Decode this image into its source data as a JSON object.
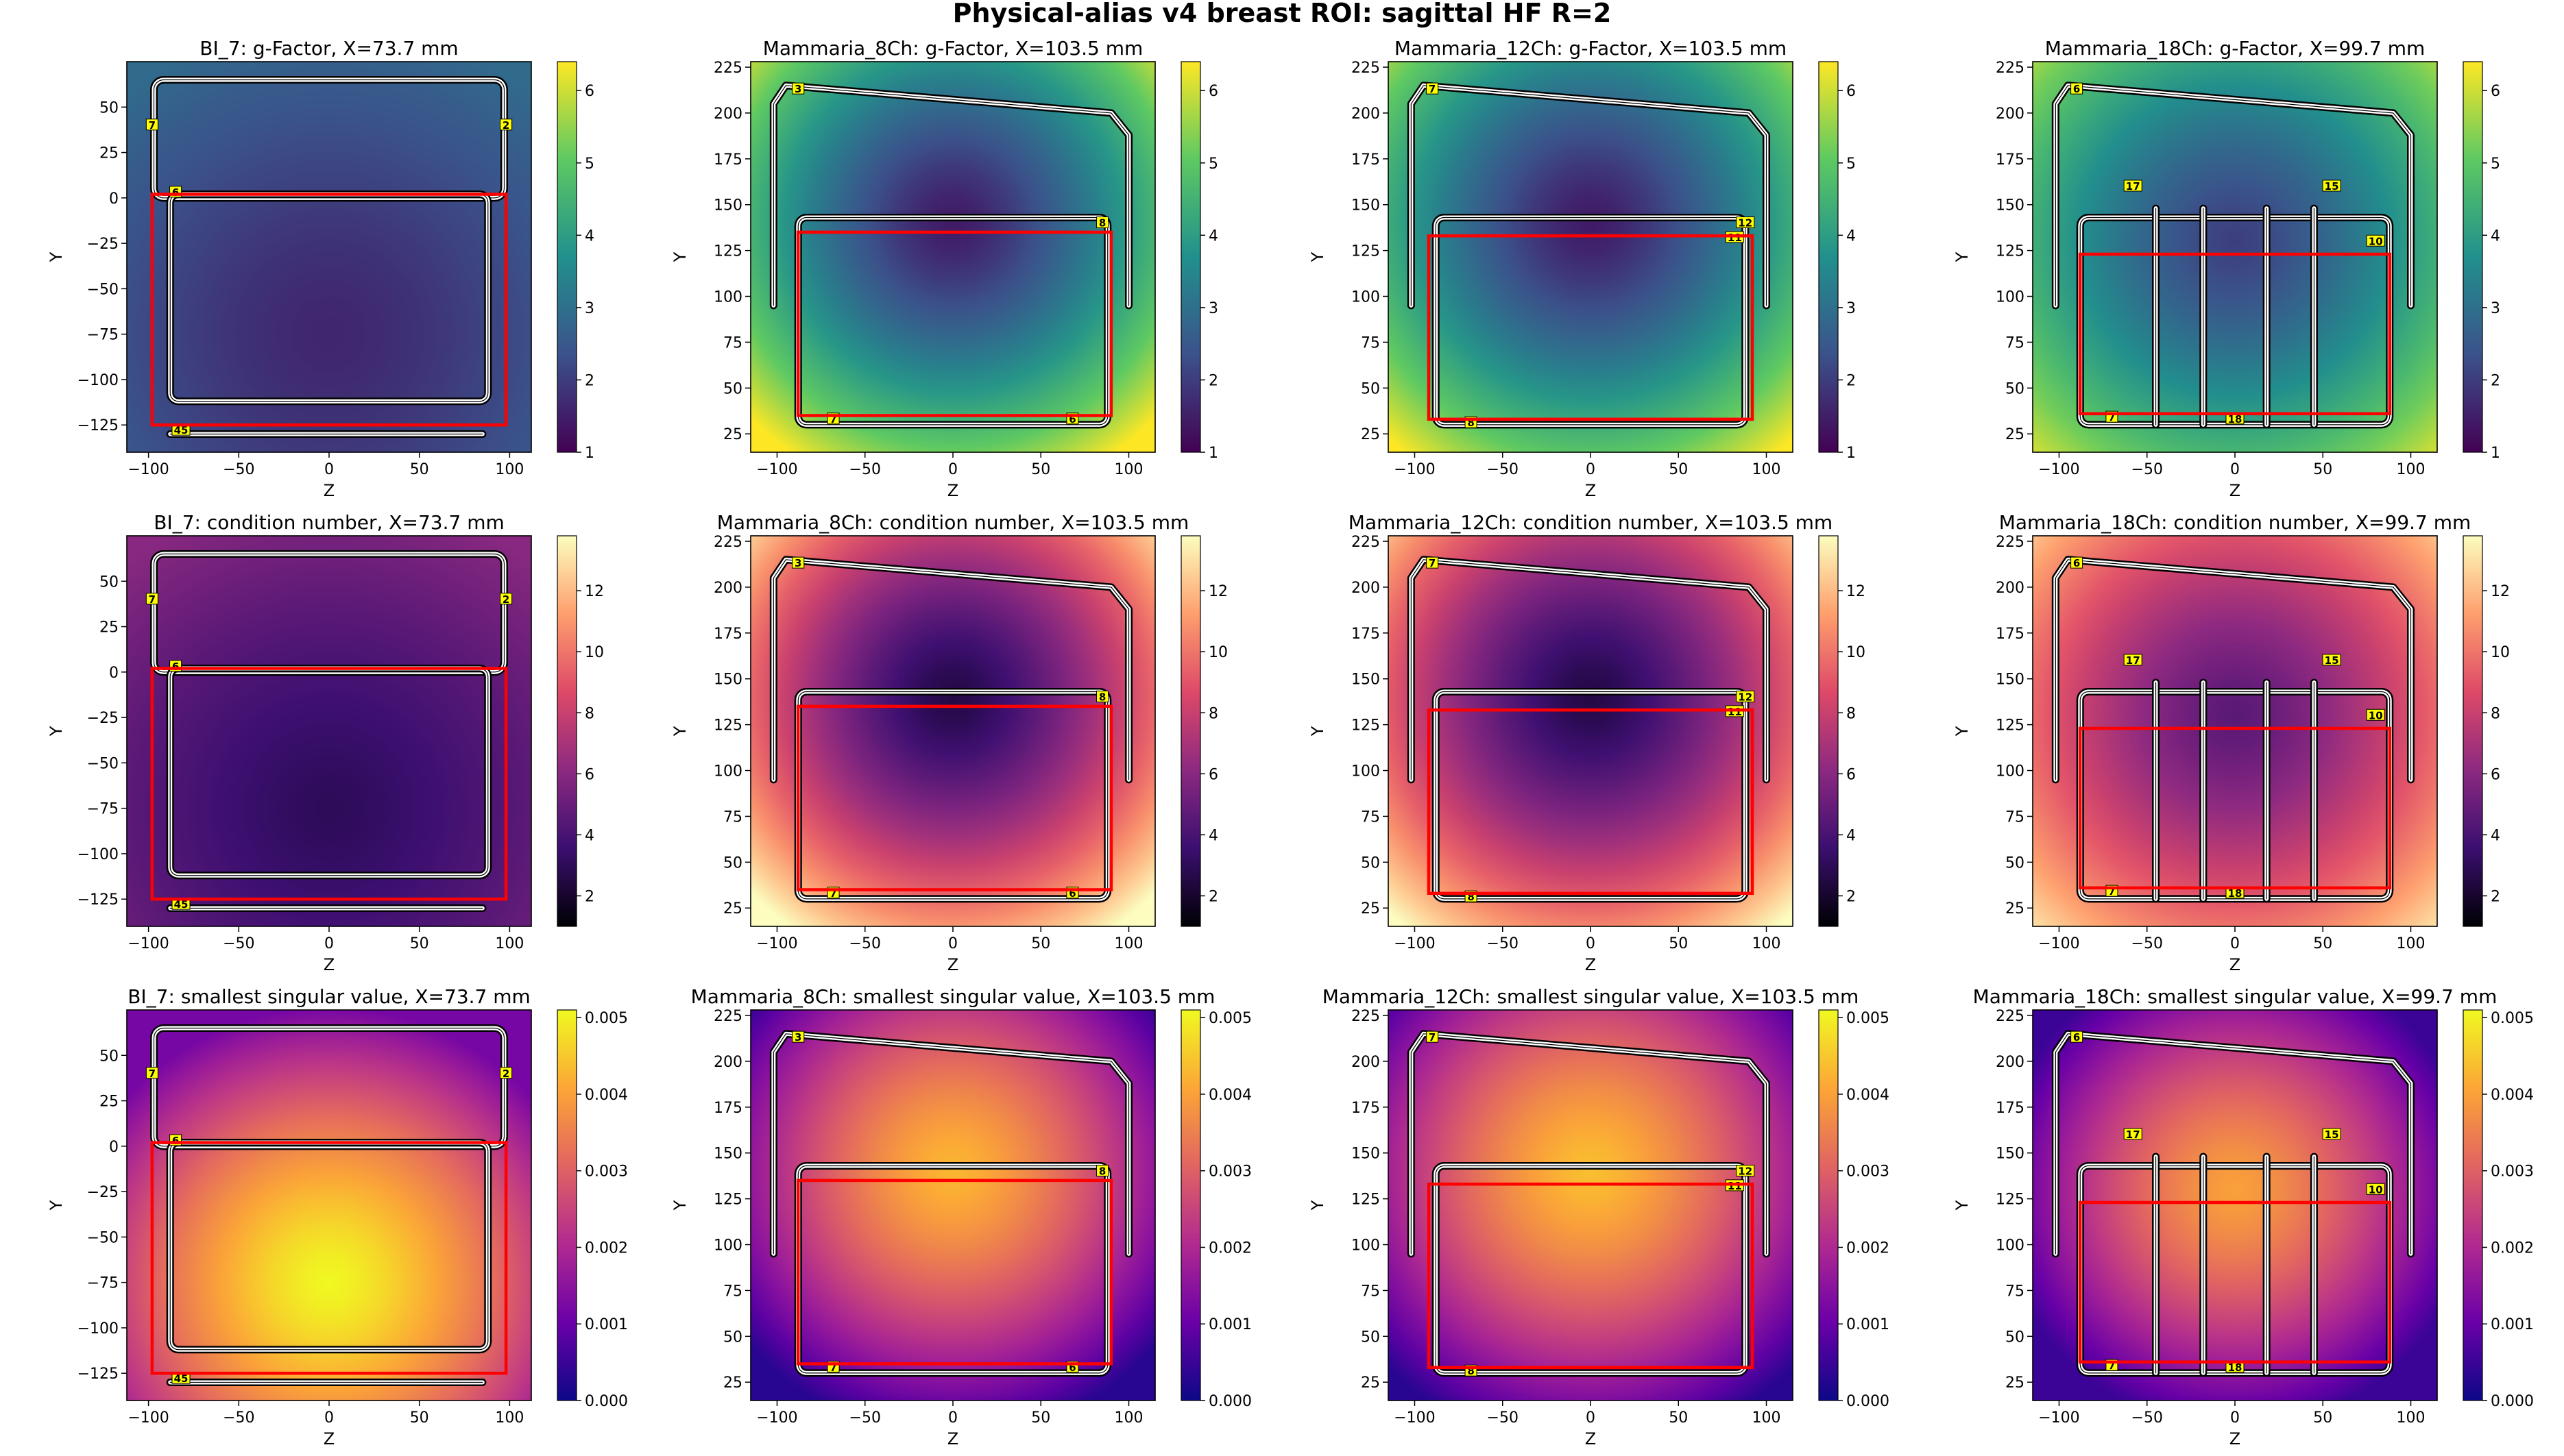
{
  "figure": {
    "title": "Physical-alias v4 breast ROI: sagittal HF R=2"
  },
  "colors": {
    "roi": "#ff0000",
    "coil_label_bg": "#ffff00",
    "viridis": [
      "#440154",
      "#3b528b",
      "#21908d",
      "#5dc962",
      "#fde725"
    ],
    "magma": [
      "#000004",
      "#3b0f70",
      "#8c2981",
      "#de4968",
      "#fe9f6d",
      "#fcfdbf"
    ],
    "plasma": [
      "#0d0887",
      "#6a00a8",
      "#b12a90",
      "#e16462",
      "#fca636",
      "#f0f921"
    ]
  },
  "rows": [
    {
      "metric": "g-Factor",
      "colormap": "viridis",
      "clim": [
        1,
        6.4
      ],
      "cbar_ticks": [
        1,
        2,
        3,
        4,
        5,
        6
      ],
      "cbar_tick_labels": [
        "1",
        "2",
        "3",
        "4",
        "5",
        "6"
      ]
    },
    {
      "metric": "condition number",
      "colormap": "magma",
      "clim": [
        1,
        13.8
      ],
      "cbar_ticks": [
        2,
        4,
        6,
        8,
        10,
        12
      ],
      "cbar_tick_labels": [
        "2",
        "4",
        "6",
        "8",
        "10",
        "12"
      ]
    },
    {
      "metric": "smallest singular value",
      "colormap": "plasma",
      "clim": [
        0,
        0.0051
      ],
      "cbar_ticks": [
        0,
        0.001,
        0.002,
        0.003,
        0.004,
        0.005
      ],
      "cbar_tick_labels": [
        "0.000",
        "0.001",
        "0.002",
        "0.003",
        "0.004",
        "0.005"
      ]
    }
  ],
  "columns": [
    {
      "coil": "BI_7",
      "x_mm": "73.7"
    },
    {
      "coil": "Mammaria_8Ch",
      "x_mm": "103.5"
    },
    {
      "coil": "Mammaria_12Ch",
      "x_mm": "103.5"
    },
    {
      "coil": "Mammaria_18Ch",
      "x_mm": "99.7"
    }
  ],
  "chart_data": [
    {
      "type": "heatmap",
      "row": 0,
      "col": 0,
      "title": "BI_7: g-Factor, X=73.7 mm",
      "xlabel": "Z",
      "ylabel": "Y",
      "xlim": [
        -112,
        112
      ],
      "ylim": [
        -140,
        75
      ],
      "xticks": [
        -100,
        -50,
        0,
        50,
        100
      ],
      "yticks": [
        -125,
        -100,
        -75,
        -50,
        -25,
        0,
        25,
        50
      ],
      "field": {
        "center": [
          0,
          -75
        ],
        "radius": [
          110,
          110
        ],
        "center_value": 1.6,
        "edge_value": 2.9
      },
      "roi": {
        "z": [
          -98,
          98
        ],
        "y": [
          -125,
          2
        ]
      },
      "coil_labels": [
        "7",
        "2",
        "6",
        "45"
      ]
    },
    {
      "type": "heatmap",
      "row": 0,
      "col": 1,
      "title": "Mammaria_8Ch: g-Factor, X=103.5 mm",
      "xlabel": "Z",
      "ylabel": "Y",
      "xlim": [
        -115,
        115
      ],
      "ylim": [
        15,
        228
      ],
      "xticks": [
        -100,
        -50,
        0,
        50,
        100
      ],
      "yticks": [
        25,
        50,
        75,
        100,
        125,
        150,
        175,
        200,
        225
      ],
      "field": {
        "center": [
          0,
          140
        ],
        "radius": [
          100,
          85
        ],
        "center_value": 1.4,
        "edge_value": 6.4
      },
      "roi": {
        "z": [
          -88,
          90
        ],
        "y": [
          35,
          135
        ]
      },
      "coil_labels": [
        "3",
        "8",
        "7",
        "6"
      ]
    },
    {
      "type": "heatmap",
      "row": 0,
      "col": 2,
      "title": "Mammaria_12Ch: g-Factor, X=103.5 mm",
      "xlabel": "Z",
      "ylabel": "Y",
      "xlim": [
        -115,
        115
      ],
      "ylim": [
        15,
        228
      ],
      "xticks": [
        -100,
        -50,
        0,
        50,
        100
      ],
      "yticks": [
        25,
        50,
        75,
        100,
        125,
        150,
        175,
        200,
        225
      ],
      "field": {
        "center": [
          0,
          140
        ],
        "radius": [
          105,
          88
        ],
        "center_value": 1.4,
        "edge_value": 6.4
      },
      "roi": {
        "z": [
          -92,
          92
        ],
        "y": [
          33,
          133
        ]
      },
      "coil_labels": [
        "7",
        "12",
        "11",
        "8"
      ]
    },
    {
      "type": "heatmap",
      "row": 0,
      "col": 3,
      "title": "Mammaria_18Ch: g-Factor, X=99.7 mm",
      "xlabel": "Z",
      "ylabel": "Y",
      "xlim": [
        -115,
        115
      ],
      "ylim": [
        15,
        228
      ],
      "xticks": [
        -100,
        -50,
        0,
        50,
        100
      ],
      "yticks": [
        25,
        50,
        75,
        100,
        125,
        150,
        175,
        200,
        225
      ],
      "field": {
        "center": [
          0,
          130
        ],
        "radius": [
          110,
          105
        ],
        "center_value": 2.0,
        "edge_value": 6.4
      },
      "roi": {
        "z": [
          -88,
          88
        ],
        "y": [
          36,
          123
        ]
      },
      "coil_labels": [
        "6",
        "17",
        "15",
        "10",
        "7",
        "18"
      ]
    },
    {
      "type": "heatmap",
      "row": 1,
      "col": 0,
      "title": "BI_7: condition number, X=73.7 mm",
      "xlabel": "Z",
      "ylabel": "Y",
      "xlim": [
        -112,
        112
      ],
      "ylim": [
        -140,
        75
      ],
      "xticks": [
        -100,
        -50,
        0,
        50,
        100
      ],
      "yticks": [
        -125,
        -100,
        -75,
        -50,
        -25,
        0,
        25,
        50
      ],
      "field": {
        "center": [
          0,
          -75
        ],
        "radius": [
          110,
          110
        ],
        "center_value": 3.0,
        "edge_value": 6.0
      },
      "roi": {
        "z": [
          -98,
          98
        ],
        "y": [
          -125,
          2
        ]
      },
      "coil_labels": [
        "7",
        "2",
        "6",
        "45"
      ]
    },
    {
      "type": "heatmap",
      "row": 1,
      "col": 1,
      "title": "Mammaria_8Ch: condition number, X=103.5 mm",
      "xlabel": "Z",
      "ylabel": "Y",
      "xlim": [
        -115,
        115
      ],
      "ylim": [
        15,
        228
      ],
      "xticks": [
        -100,
        -50,
        0,
        50,
        100
      ],
      "yticks": [
        25,
        50,
        75,
        100,
        125,
        150,
        175,
        200,
        225
      ],
      "field": {
        "center": [
          0,
          140
        ],
        "radius": [
          100,
          85
        ],
        "center_value": 2.5,
        "edge_value": 13.8
      },
      "roi": {
        "z": [
          -88,
          90
        ],
        "y": [
          35,
          135
        ]
      },
      "coil_labels": [
        "3",
        "8",
        "7",
        "6"
      ]
    },
    {
      "type": "heatmap",
      "row": 1,
      "col": 2,
      "title": "Mammaria_12Ch: condition number, X=103.5 mm",
      "xlabel": "Z",
      "ylabel": "Y",
      "xlim": [
        -115,
        115
      ],
      "ylim": [
        15,
        228
      ],
      "xticks": [
        -100,
        -50,
        0,
        50,
        100
      ],
      "yticks": [
        25,
        50,
        75,
        100,
        125,
        150,
        175,
        200,
        225
      ],
      "field": {
        "center": [
          0,
          140
        ],
        "radius": [
          105,
          88
        ],
        "center_value": 2.5,
        "edge_value": 13.8
      },
      "roi": {
        "z": [
          -92,
          92
        ],
        "y": [
          33,
          133
        ]
      },
      "coil_labels": [
        "7",
        "12",
        "11",
        "8"
      ]
    },
    {
      "type": "heatmap",
      "row": 1,
      "col": 3,
      "title": "Mammaria_18Ch: condition number, X=99.7 mm",
      "xlabel": "Z",
      "ylabel": "Y",
      "xlim": [
        -115,
        115
      ],
      "ylim": [
        15,
        228
      ],
      "xticks": [
        -100,
        -50,
        0,
        50,
        100
      ],
      "yticks": [
        25,
        50,
        75,
        100,
        125,
        150,
        175,
        200,
        225
      ],
      "field": {
        "center": [
          0,
          130
        ],
        "radius": [
          110,
          105
        ],
        "center_value": 4.5,
        "edge_value": 13.8
      },
      "roi": {
        "z": [
          -88,
          88
        ],
        "y": [
          36,
          123
        ]
      },
      "coil_labels": [
        "6",
        "17",
        "15",
        "10",
        "7",
        "18"
      ]
    },
    {
      "type": "heatmap",
      "row": 2,
      "col": 0,
      "title": "BI_7: smallest singular value, X=73.7 mm",
      "xlabel": "Z",
      "ylabel": "Y",
      "xlim": [
        -112,
        112
      ],
      "ylim": [
        -140,
        75
      ],
      "xticks": [
        -100,
        -50,
        0,
        50,
        100
      ],
      "yticks": [
        -125,
        -100,
        -75,
        -50,
        -25,
        0,
        25,
        50
      ],
      "field": {
        "center": [
          0,
          -75
        ],
        "radius": [
          95,
          95
        ],
        "center_value": 0.0051,
        "edge_value": 0.0012
      },
      "roi": {
        "z": [
          -98,
          98
        ],
        "y": [
          -125,
          2
        ]
      },
      "coil_labels": [
        "7",
        "2",
        "6",
        "45"
      ]
    },
    {
      "type": "heatmap",
      "row": 2,
      "col": 1,
      "title": "Mammaria_8Ch: smallest singular value, X=103.5 mm",
      "xlabel": "Z",
      "ylabel": "Y",
      "xlim": [
        -115,
        115
      ],
      "ylim": [
        15,
        228
      ],
      "xticks": [
        -100,
        -50,
        0,
        50,
        100
      ],
      "yticks": [
        25,
        50,
        75,
        100,
        125,
        150,
        175,
        200,
        225
      ],
      "field": {
        "center": [
          0,
          140
        ],
        "radius": [
          95,
          85
        ],
        "center_value": 0.0043,
        "edge_value": 0.0003
      },
      "roi": {
        "z": [
          -88,
          90
        ],
        "y": [
          35,
          135
        ]
      },
      "coil_labels": [
        "3",
        "8",
        "7",
        "6"
      ]
    },
    {
      "type": "heatmap",
      "row": 2,
      "col": 2,
      "title": "Mammaria_12Ch: smallest singular value, X=103.5 mm",
      "xlabel": "Z",
      "ylabel": "Y",
      "xlim": [
        -115,
        115
      ],
      "ylim": [
        15,
        228
      ],
      "xticks": [
        -100,
        -50,
        0,
        50,
        100
      ],
      "yticks": [
        25,
        50,
        75,
        100,
        125,
        150,
        175,
        200,
        225
      ],
      "field": {
        "center": [
          0,
          140
        ],
        "radius": [
          100,
          88
        ],
        "center_value": 0.0044,
        "edge_value": 0.0003
      },
      "roi": {
        "z": [
          -92,
          92
        ],
        "y": [
          33,
          133
        ]
      },
      "coil_labels": [
        "7",
        "12",
        "11",
        "8"
      ]
    },
    {
      "type": "heatmap",
      "row": 2,
      "col": 3,
      "title": "Mammaria_18Ch: smallest singular value, X=99.7 mm",
      "xlabel": "Z",
      "ylabel": "Y",
      "xlim": [
        -115,
        115
      ],
      "ylim": [
        15,
        228
      ],
      "xticks": [
        -100,
        -50,
        0,
        50,
        100
      ],
      "yticks": [
        25,
        50,
        75,
        100,
        125,
        150,
        175,
        200,
        225
      ],
      "field": {
        "center": [
          0,
          130
        ],
        "radius": [
          85,
          95
        ],
        "center_value": 0.004,
        "edge_value": 0.0005
      },
      "roi": {
        "z": [
          -88,
          88
        ],
        "y": [
          36,
          123
        ]
      },
      "coil_labels": [
        "6",
        "17",
        "15",
        "10",
        "7",
        "18"
      ]
    }
  ]
}
